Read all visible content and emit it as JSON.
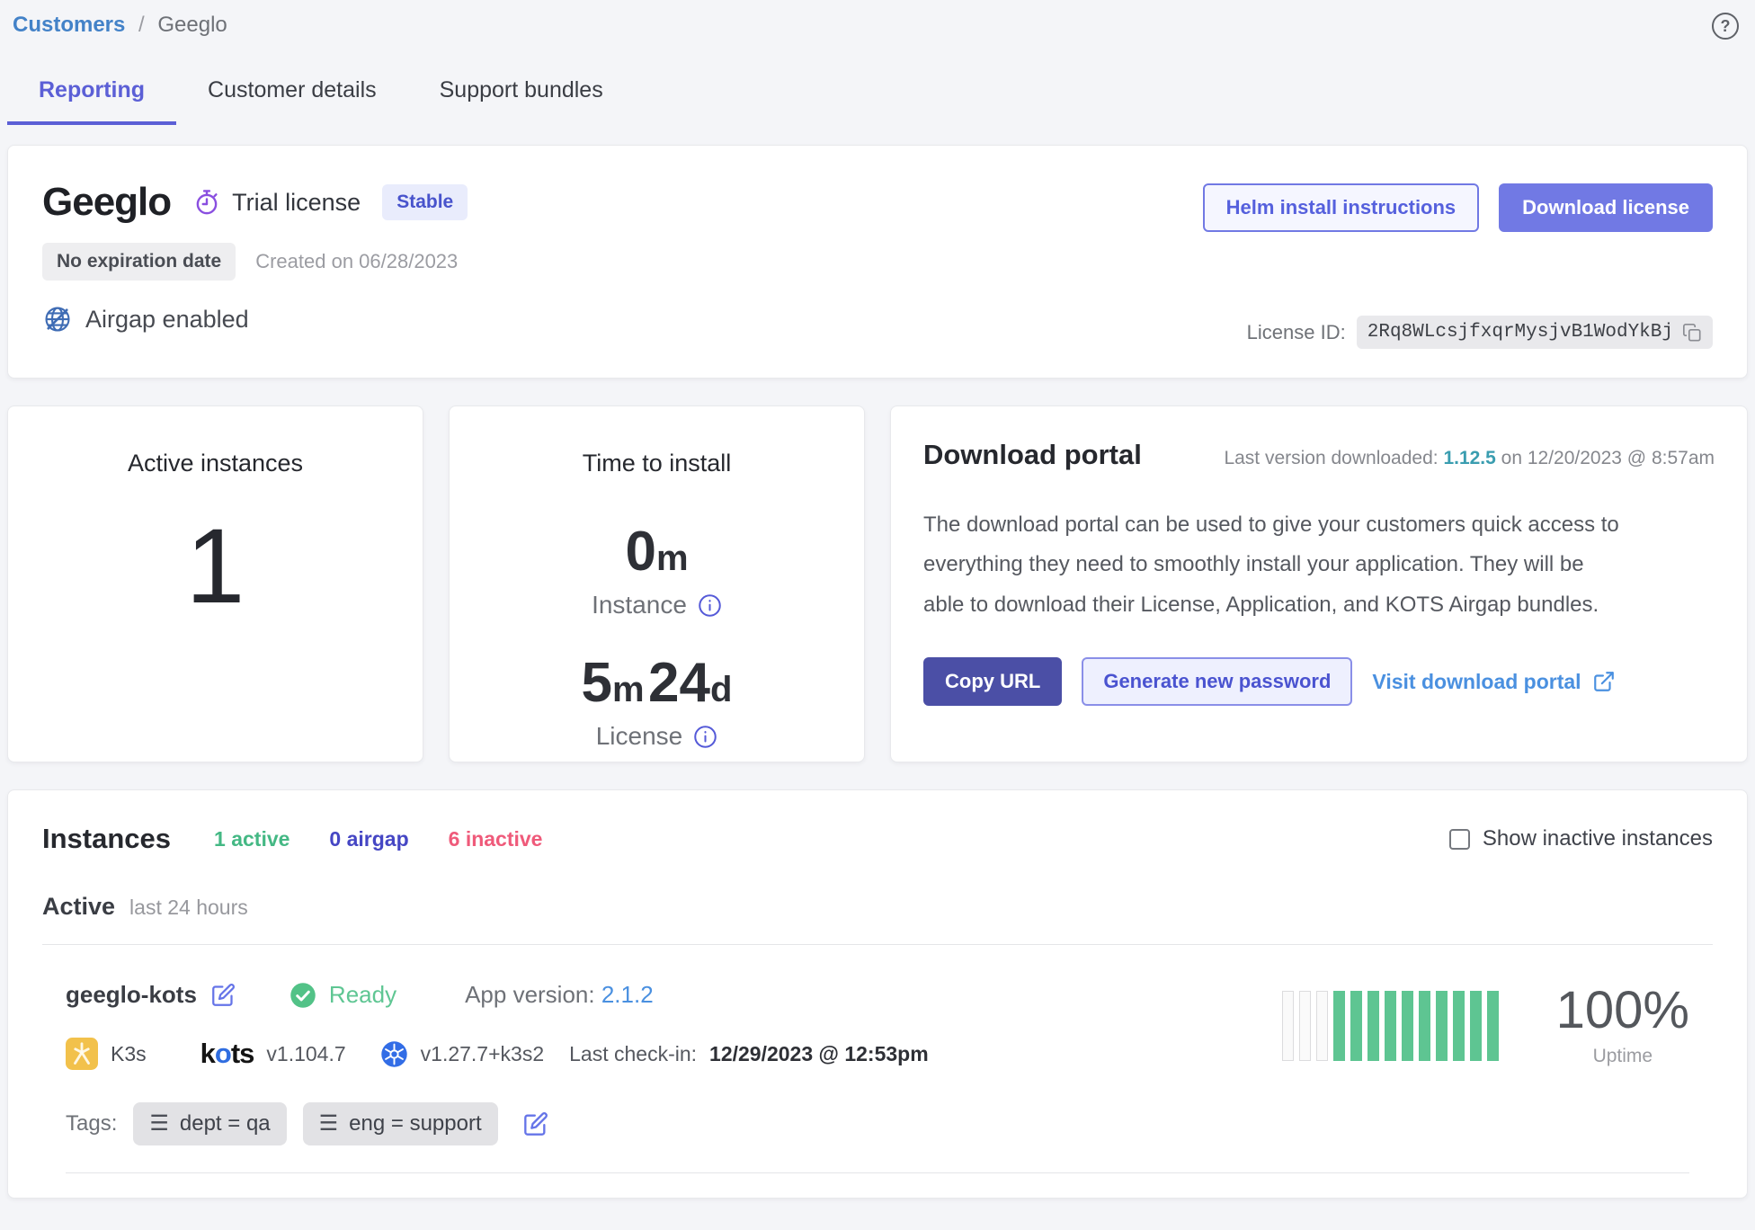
{
  "header": {
    "breadcrumb": {
      "link": "Customers",
      "separator": "/",
      "current": "Geeglo"
    },
    "help_glyph": "?"
  },
  "tabs": [
    {
      "label": "Reporting",
      "active": true
    },
    {
      "label": "Customer details",
      "active": false
    },
    {
      "label": "Support bundles",
      "active": false
    }
  ],
  "license_card": {
    "app_name": "Geeglo",
    "license_type": "Trial license",
    "channel_badge": "Stable",
    "expiration_badge": "No expiration date",
    "created_text": "Created on 06/28/2023",
    "airgap_label": "Airgap enabled",
    "helm_button": "Helm install instructions",
    "download_button": "Download license",
    "license_id_label": "License ID:",
    "license_id": "2Rq8WLcsjfxqrMysjvB1WodYkBj"
  },
  "active_instances_card": {
    "title": "Active instances",
    "value": "1"
  },
  "time_to_install_card": {
    "title": "Time to install",
    "instance_metric": {
      "value": "0",
      "unit": "m",
      "label": "Instance"
    },
    "license_metric": {
      "value1": "5",
      "unit1": "m",
      "value2": "24",
      "unit2": "d",
      "label": "License"
    }
  },
  "download_portal_card": {
    "title": "Download portal",
    "last_version_prefix": "Last version downloaded: ",
    "last_version": "1.12.5",
    "last_version_suffix": " on 12/20/2023 @ 8:57am",
    "description_lines": [
      "The download portal can be used to give your customers quick access to",
      "everything they need to smoothly install your application. They will be",
      "able to download their License, Application, and KOTS Airgap bundles."
    ],
    "copy_url_button": "Copy URL",
    "generate_password_button": "Generate new password",
    "visit_portal_link": "Visit download portal"
  },
  "instances_section": {
    "title": "Instances",
    "counts": [
      {
        "label": "1 active"
      },
      {
        "label": "0 airgap"
      },
      {
        "label": "6 inactive"
      }
    ],
    "show_inactive_label": "Show inactive instances",
    "active_header": "Active",
    "active_sub": "last 24 hours",
    "instance": {
      "name": "geeglo-kots",
      "status": "Ready",
      "app_version_label": "App version:",
      "app_version": "2.1.2",
      "distribution": "K3s",
      "kots_logo": {
        "k": "k",
        "o": "o",
        "ts": "ts"
      },
      "kots_version": "v1.104.7",
      "k8s_version": "v1.27.7+k3s2",
      "last_checkin_label": "Last check-in:",
      "last_checkin": "12/29/2023 @ 12:53pm",
      "tags_label": "Tags:",
      "tags": [
        "dept = qa",
        "eng = support"
      ],
      "uptime_bars": [
        0,
        0,
        0,
        1,
        1,
        1,
        1,
        1,
        1,
        1,
        1,
        1,
        1
      ],
      "uptime_value": "100%",
      "uptime_label": "Uptime"
    }
  },
  "colors": {
    "accent_indigo": "#5b5fd6",
    "button_primary": "#7179e4",
    "button_dark": "#4b4fa6",
    "link_blue": "#4a90e0",
    "teal_link": "#3a9db0",
    "active_green": "#44b884",
    "airgap_indigo": "#4546c4",
    "inactive_red": "#ef5a7a",
    "ready_green": "#52c287",
    "uptime_green": "#5ec592",
    "k3s_yellow": "#f2c14b",
    "kubernetes_blue": "#326de6"
  }
}
